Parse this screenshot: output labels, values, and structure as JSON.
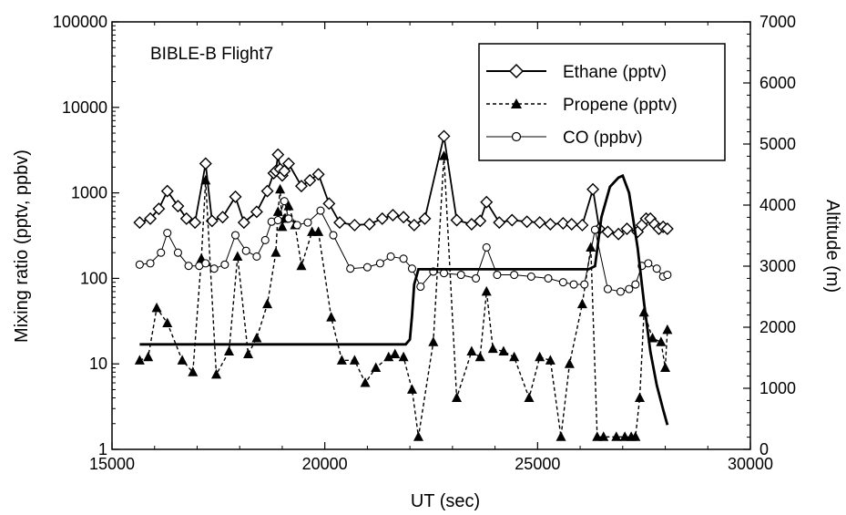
{
  "chart_data": {
    "type": "line",
    "annotation": "BIBLE-B Flight7",
    "xlabel": "UT (sec)",
    "ylabel_left": "Mixing ratio (pptv, ppbv)",
    "ylabel_right": "Altitude (m)",
    "xlim": [
      15000,
      30000
    ],
    "ylim_left": [
      1,
      100000
    ],
    "ylim_right": [
      0,
      7000
    ],
    "yscale_left": "log",
    "x_ticks": [
      15000,
      20000,
      25000,
      30000
    ],
    "x_tick_labels": [
      "15000",
      "20000",
      "25000",
      "30000"
    ],
    "y_left_ticks": [
      1,
      10,
      100,
      1000,
      10000,
      100000
    ],
    "y_left_tick_labels": [
      "1",
      "10",
      "100",
      "1000",
      "10000",
      "100000"
    ],
    "y_right_ticks": [
      0,
      1000,
      2000,
      3000,
      4000,
      5000,
      6000,
      7000
    ],
    "y_right_tick_labels": [
      "0",
      "1000",
      "2000",
      "3000",
      "4000",
      "5000",
      "6000",
      "7000"
    ],
    "grid": false,
    "legend_position": "top-right",
    "series": [
      {
        "name": "Ethane (pptv)",
        "axis": "left",
        "style": "solid-diamond",
        "x": [
          15650,
          15900,
          16100,
          16300,
          16550,
          16750,
          16950,
          17200,
          17350,
          17600,
          17900,
          18100,
          18400,
          18650,
          18800,
          18850,
          18900,
          18950,
          19000,
          19050,
          19150,
          19450,
          19650,
          19850,
          20100,
          20350,
          20700,
          21050,
          21350,
          21600,
          21850,
          22100,
          22350,
          22800,
          23100,
          23450,
          23650,
          23800,
          24100,
          24400,
          24750,
          25050,
          25300,
          25600,
          25800,
          26050,
          26300,
          26450,
          26650,
          26900,
          27100,
          27350,
          27450,
          27550,
          27650,
          27750,
          27850,
          27950,
          28050
        ],
        "y": [
          450,
          500,
          650,
          1050,
          700,
          500,
          450,
          2200,
          470,
          520,
          900,
          450,
          600,
          1050,
          1700,
          1800,
          2800,
          1900,
          1600,
          1800,
          2200,
          1200,
          1400,
          1650,
          750,
          450,
          420,
          430,
          500,
          550,
          520,
          420,
          500,
          4600,
          480,
          430,
          470,
          780,
          450,
          480,
          460,
          450,
          430,
          440,
          430,
          420,
          1100,
          380,
          350,
          330,
          380,
          350,
          420,
          500,
          500,
          430,
          380,
          400,
          380
        ]
      },
      {
        "name": "Propene (pptv)",
        "axis": "left",
        "style": "dashed-triangle",
        "x": [
          15650,
          15850,
          16050,
          16300,
          16650,
          16900,
          17100,
          17200,
          17450,
          17750,
          17950,
          18200,
          18400,
          18650,
          18850,
          18900,
          18950,
          19000,
          19050,
          19150,
          19300,
          19450,
          19700,
          19850,
          20150,
          20400,
          20700,
          20950,
          21200,
          21500,
          21650,
          21850,
          22050,
          22200,
          22550,
          22800,
          23100,
          23450,
          23650,
          23800,
          23950,
          24200,
          24450,
          24800,
          25050,
          25300,
          25550,
          25750,
          26050,
          26250,
          26400,
          26550,
          26850,
          27050,
          27200,
          27300,
          27400,
          27500,
          27700,
          27900,
          28000,
          28050
        ],
        "y": [
          11,
          12,
          45,
          30,
          11,
          8,
          170,
          1400,
          7.5,
          14,
          180,
          13,
          20,
          50,
          200,
          600,
          1100,
          400,
          500,
          700,
          420,
          140,
          350,
          350,
          35,
          11,
          11,
          6,
          9,
          12,
          13,
          12,
          5,
          1.4,
          18,
          2700,
          4,
          14,
          12,
          70,
          15,
          14,
          12,
          4,
          12,
          11,
          1.4,
          10,
          50,
          230,
          1.4,
          1.4,
          1.4,
          1.4,
          1.4,
          1.4,
          4,
          40,
          20,
          18,
          9,
          25
        ]
      },
      {
        "name": "CO (ppbv)",
        "axis": "left",
        "style": "solid-circle",
        "x": [
          15650,
          15900,
          16150,
          16300,
          16550,
          16800,
          17050,
          17200,
          17400,
          17650,
          17900,
          18150,
          18400,
          18600,
          18750,
          18900,
          19050,
          19150,
          19350,
          19600,
          19900,
          20200,
          20600,
          21000,
          21300,
          21550,
          21850,
          22050,
          22250,
          22550,
          22800,
          23200,
          23550,
          23800,
          24050,
          24450,
          24850,
          25250,
          25600,
          25850,
          26100,
          26350,
          26650,
          26950,
          27150,
          27300,
          27450,
          27600,
          27800,
          27950,
          28050
        ],
        "y": [
          145,
          150,
          200,
          340,
          200,
          140,
          140,
          150,
          130,
          145,
          320,
          210,
          180,
          280,
          460,
          480,
          800,
          500,
          420,
          450,
          620,
          320,
          130,
          135,
          150,
          180,
          170,
          130,
          80,
          120,
          115,
          110,
          100,
          230,
          110,
          110,
          105,
          100,
          90,
          85,
          85,
          370,
          75,
          70,
          75,
          85,
          140,
          150,
          130,
          105,
          110
        ]
      },
      {
        "name": "Altitude",
        "axis": "right",
        "style": "solid-thick",
        "x": [
          15650,
          16500,
          18000,
          20000,
          21000,
          21900,
          22000,
          22050,
          22100,
          22200,
          22500,
          23500,
          24500,
          25500,
          26200,
          26350,
          26500,
          26700,
          26900,
          27000,
          27150,
          27350,
          27500,
          27650,
          27800,
          27950,
          28050
        ],
        "y": [
          1720,
          1720,
          1720,
          1720,
          1720,
          1720,
          1800,
          2200,
          2700,
          2950,
          2950,
          2950,
          2950,
          2950,
          2950,
          3000,
          3800,
          4300,
          4450,
          4480,
          4200,
          3300,
          2400,
          1600,
          1050,
          650,
          400
        ]
      }
    ],
    "legend_entries": [
      "Ethane (pptv)",
      "Propene (pptv)",
      "CO (ppbv)"
    ]
  }
}
